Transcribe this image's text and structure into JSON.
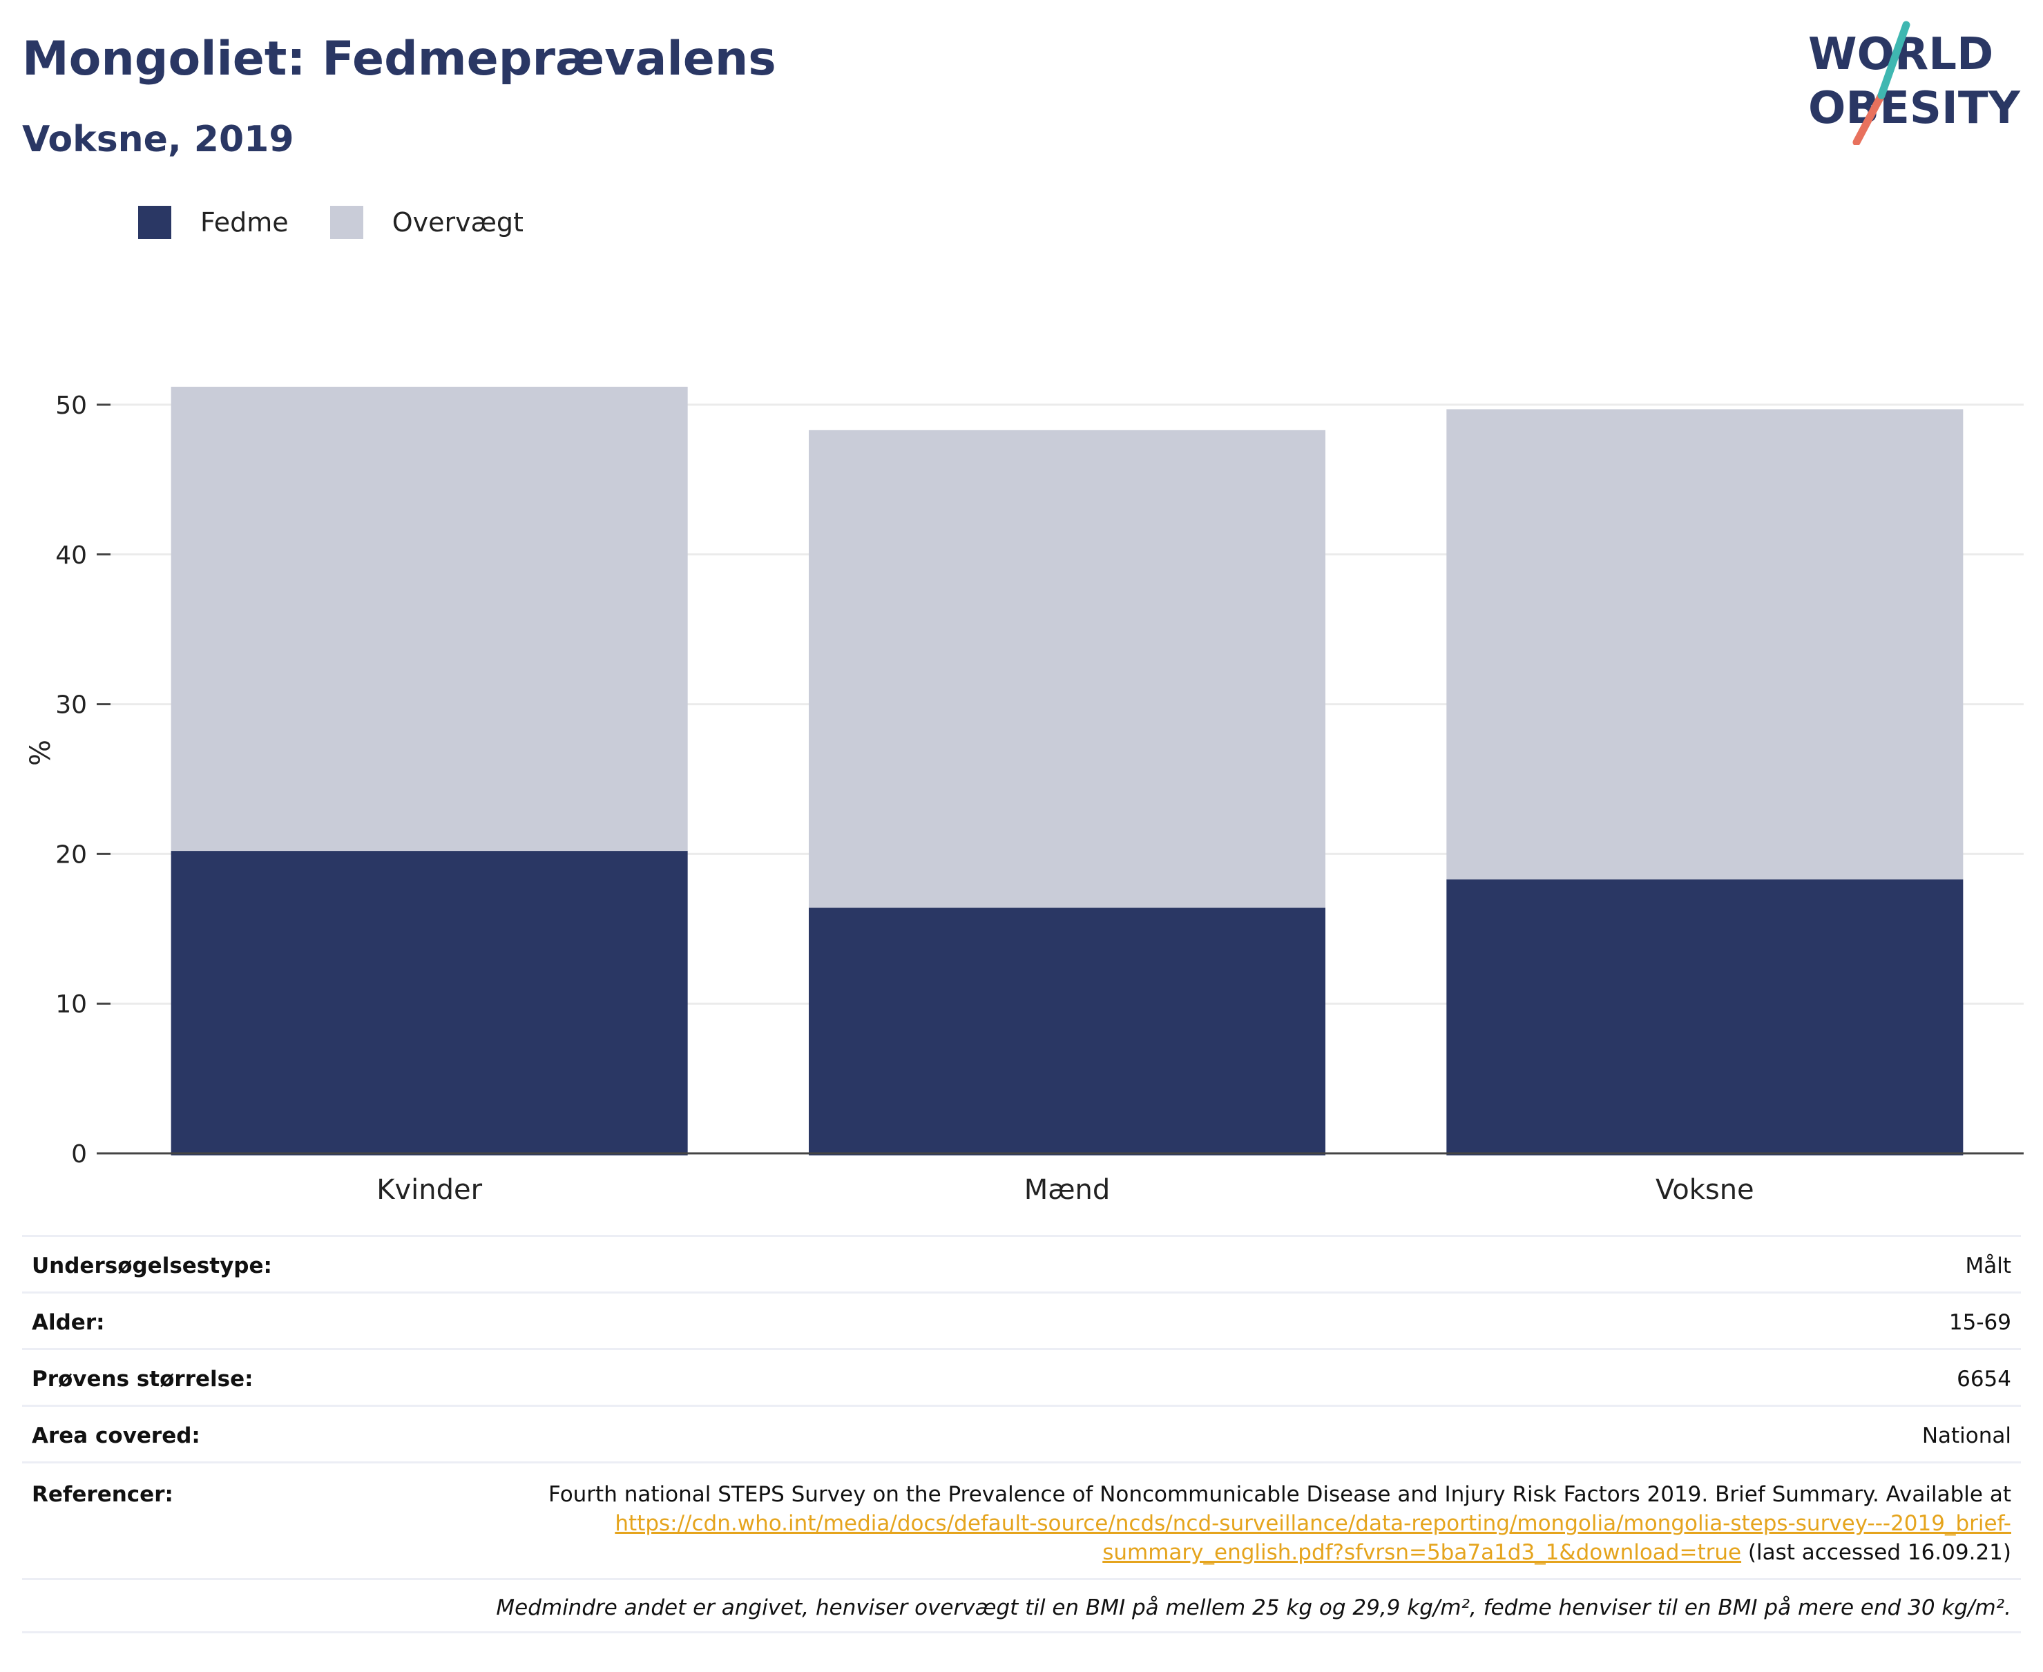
{
  "header": {
    "title": "Mongoliet: Fedmeprævalens",
    "subtitle": "Voksne, 2019"
  },
  "logo": {
    "line1": "WORLD",
    "line2": "OBESITY"
  },
  "colors": {
    "fedme": "#2a3764",
    "overvaegt": "#c9ccd8",
    "accent": "#e5a41d",
    "text": "#2a3764"
  },
  "legend": [
    {
      "label": "Fedme",
      "color": "#2a3764"
    },
    {
      "label": "Overvægt",
      "color": "#c9ccd8"
    }
  ],
  "chart_data": {
    "type": "bar",
    "stacked": true,
    "categories": [
      "Kvinder",
      "Mænd",
      "Voksne"
    ],
    "series": [
      {
        "name": "Fedme",
        "values": [
          20.2,
          16.4,
          18.3
        ]
      },
      {
        "name": "Overvægt",
        "values": [
          31.0,
          31.9,
          31.4
        ]
      }
    ],
    "ylabel": "%",
    "ylim": [
      0,
      55
    ],
    "yticks": [
      0,
      10,
      20,
      30,
      40,
      50
    ],
    "grid": true,
    "legend_position": "top-left"
  },
  "details": [
    {
      "key": "Undersøgelsestype:",
      "value": "Målt"
    },
    {
      "key": "Alder:",
      "value": "15-69"
    },
    {
      "key": "Prøvens størrelse:",
      "value": "6654"
    },
    {
      "key": "Area covered:",
      "value": "National"
    }
  ],
  "reference": {
    "key": "Referencer:",
    "text_before": "Fourth national STEPS Survey on the Prevalence of Noncommunicable Disease and Injury Risk Factors 2019. Brief Summary. Available at ",
    "link": "https://cdn.who.int/media/docs/default-source/ncds/ncd-surveillance/data-reporting/mongolia/mongolia-steps-survey---2019_brief-summary_english.pdf?sfvrsn=5ba7a1d3_1&download=true",
    "text_after": " (last accessed 16.09.21)"
  },
  "note": "Medmindre andet er angivet, henviser overvægt til en BMI på mellem 25 kg og 29,9 kg/m², fedme henviser til en BMI på mere end 30 kg/m²."
}
